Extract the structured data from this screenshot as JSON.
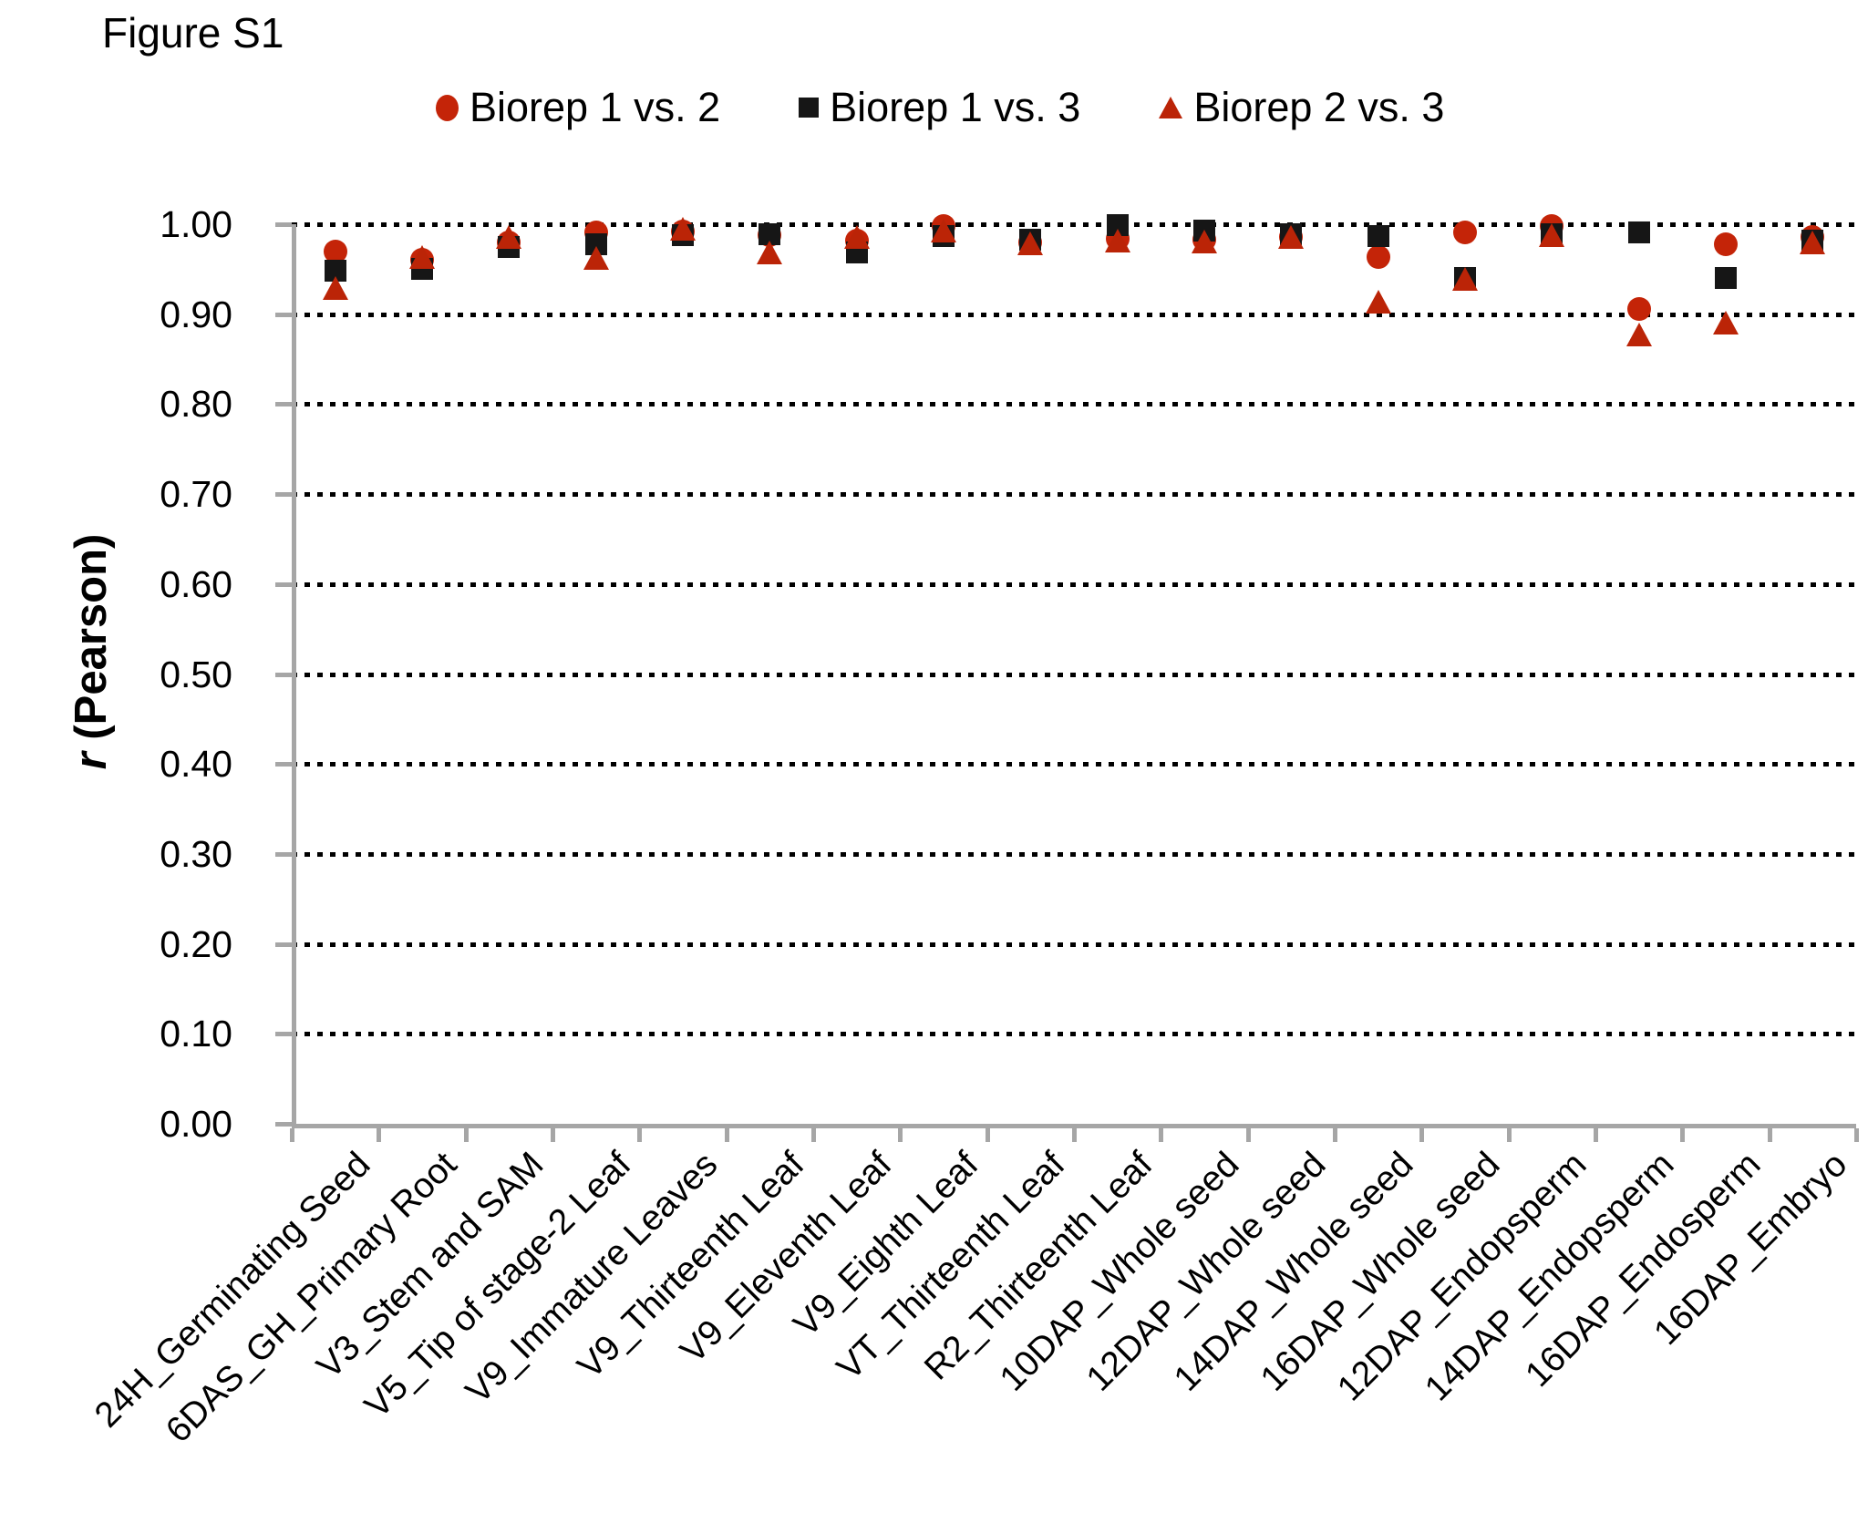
{
  "figure_label": "Figure S1",
  "y_axis": {
    "label_italic": "r",
    "label_rest": " (Pearson)",
    "ticks": [
      "1.00",
      "0.90",
      "0.80",
      "0.70",
      "0.60",
      "0.50",
      "0.40",
      "0.30",
      "0.20",
      "0.10",
      "0.00"
    ],
    "min": 0.0,
    "max": 1.0
  },
  "colors": {
    "red_circle": "#c42408",
    "red_triangle": "#bb2407",
    "black_square": "#161616",
    "axis_gray": "#a6a6a6",
    "gridline": "#000000"
  },
  "chart_data": {
    "type": "scatter",
    "title": "Figure S1",
    "xlabel": "",
    "ylabel": "r (Pearson)",
    "ylim": [
      0.0,
      1.0
    ],
    "ytick_step": 0.1,
    "grid": "horizontal dotted lines at every 0.10",
    "legend_position": "top",
    "categories": [
      "24H_Germinating Seed",
      "6DAS_GH_Primary Root",
      "V3_Stem and SAM",
      "V5_Tip of stage-2 Leaf",
      "V9_Immature Leaves",
      "V9_Thirteenth Leaf",
      "V9_Eleventh Leaf",
      "V9_Eighth Leaf",
      "VT_Thirteenth Leaf",
      "R2_Thirteenth Leaf",
      "10DAP_Whole seed",
      "12DAP_Whole seed",
      "14DAP_Whole seed",
      "16DAP_Whole seed",
      "12DAP_Endopsperm",
      "14DAP_Endopsperm",
      "16DAP_Endosperm",
      "16DAP_Embryo"
    ],
    "series": [
      {
        "name": "Biorep 1 vs. 2",
        "marker": "circle",
        "color": "#c42408",
        "values": [
          0.97,
          0.96,
          0.98,
          0.991,
          0.992,
          0.988,
          0.982,
          0.998,
          0.98,
          0.984,
          0.983,
          0.986,
          0.964,
          0.991,
          0.998,
          0.906,
          0.978,
          0.986
        ]
      },
      {
        "name": "Biorep 1 vs. 3",
        "marker": "square",
        "color": "#161616",
        "values": [
          0.948,
          0.95,
          0.975,
          0.978,
          0.988,
          0.989,
          0.969,
          0.987,
          0.983,
          0.999,
          0.993,
          0.989,
          0.987,
          0.94,
          0.989,
          0.991,
          0.94,
          0.982
        ]
      },
      {
        "name": "Biorep 2 vs. 3",
        "marker": "triangle",
        "color": "#bb2407",
        "values": [
          0.928,
          0.963,
          0.985,
          0.961,
          0.994,
          0.968,
          0.985,
          0.992,
          0.978,
          0.981,
          0.98,
          0.985,
          0.913,
          0.938,
          0.987,
          0.876,
          0.89,
          0.979
        ]
      }
    ]
  }
}
